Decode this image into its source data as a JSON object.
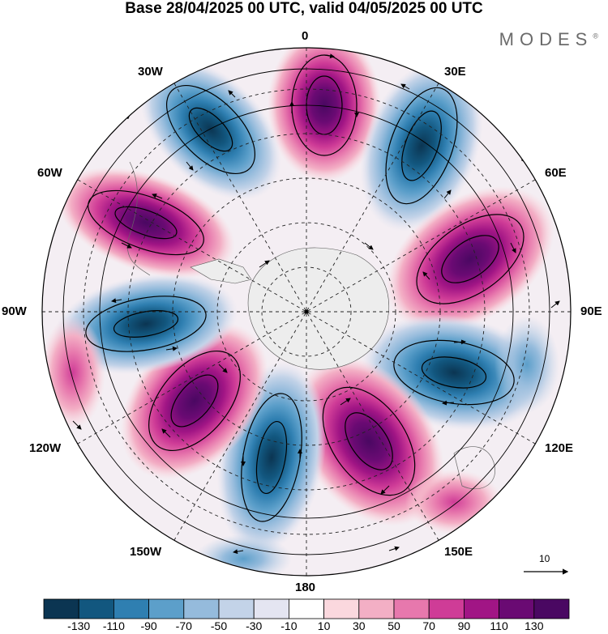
{
  "title": "Base 28/04/2025 00 UTC, valid 04/05/2025 00 UTC",
  "brand": "MODES",
  "brand_mark": "®",
  "longitude_labels": {
    "lon_0": "0",
    "lon_30e": "30E",
    "lon_60e": "60E",
    "lon_90e": "90E",
    "lon_120e": "120E",
    "lon_150e": "150E",
    "lon_180": "180",
    "lon_150w": "150W",
    "lon_120w": "120W",
    "lon_90w": "90W",
    "lon_60w": "60W",
    "lon_30w": "30W"
  },
  "vector_reference": {
    "value": "10"
  },
  "colorbar": {
    "ticks": [
      "-130",
      "-110",
      "-90",
      "-70",
      "-50",
      "-30",
      "-10",
      "10",
      "30",
      "50",
      "70",
      "90",
      "110",
      "130"
    ],
    "colors": [
      "#0b3552",
      "#12577f",
      "#2f7fb1",
      "#5c9fca",
      "#95bbdc",
      "#c3d3e8",
      "#e4e5f1",
      "#ffffff",
      "#fbd8de",
      "#f3afc5",
      "#e778ad",
      "#cf3c97",
      "#a11585",
      "#6a0a73",
      "#4a0862"
    ]
  },
  "colors": {
    "land_fill": "#ededed",
    "positive_strong": "#7a0e7c",
    "negative_strong": "#12577f"
  }
}
